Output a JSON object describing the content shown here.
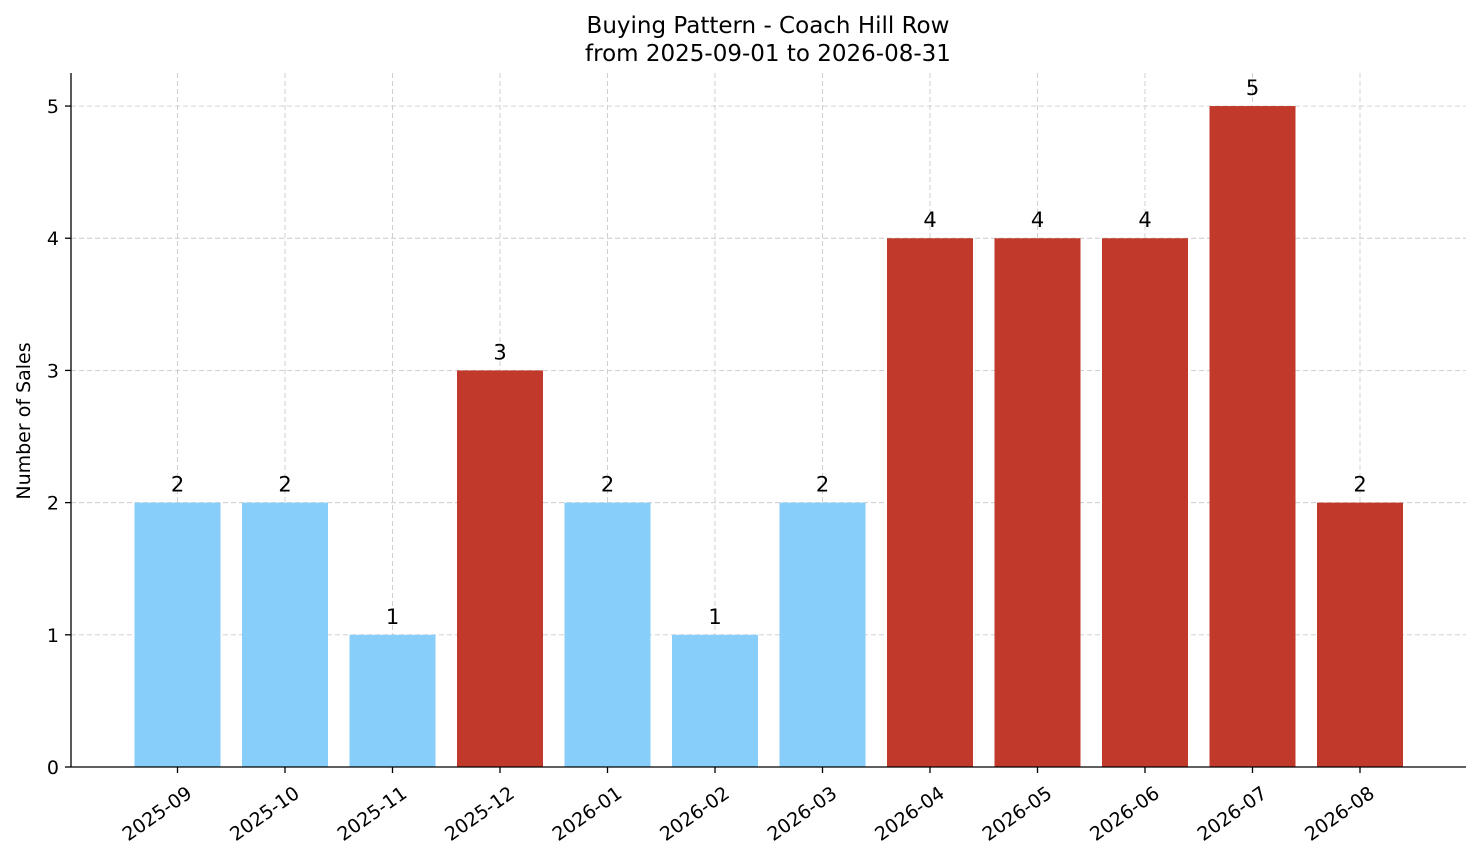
{
  "chart_data": {
    "type": "bar",
    "title": "Buying Pattern - Coach Hill Row",
    "subtitle": "from 2025-09-01 to 2026-08-31",
    "xlabel": "",
    "ylabel": "Number of Sales",
    "categories": [
      "2025-09",
      "2025-10",
      "2025-11",
      "2025-12",
      "2026-01",
      "2026-02",
      "2026-03",
      "2026-04",
      "2026-05",
      "2026-06",
      "2026-07",
      "2026-08"
    ],
    "values": [
      2,
      2,
      1,
      3,
      2,
      1,
      2,
      4,
      4,
      4,
      5,
      2
    ],
    "bar_colors": [
      "#87cefa",
      "#87cefa",
      "#87cefa",
      "#c0392b",
      "#87cefa",
      "#87cefa",
      "#87cefa",
      "#c0392b",
      "#c0392b",
      "#c0392b",
      "#c0392b",
      "#c0392b"
    ],
    "ylim": [
      0,
      5.25
    ],
    "yticks": [
      0,
      1,
      2,
      3,
      4,
      5
    ],
    "grid": true,
    "show_data_labels": true
  }
}
